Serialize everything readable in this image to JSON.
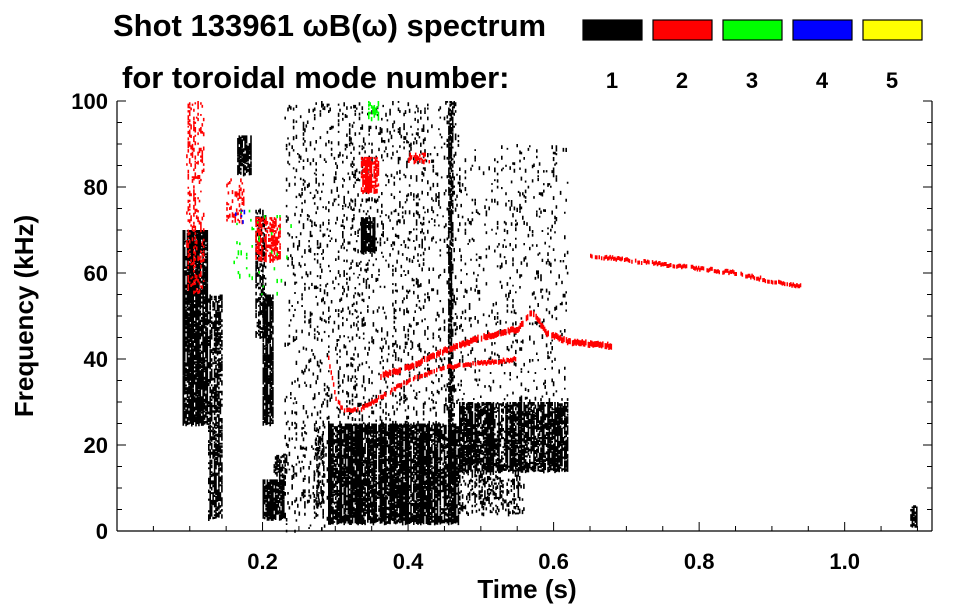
{
  "chart_data": {
    "type": "heatmap",
    "title_line1": "Shot 133961 ωB(ω) spectrum",
    "title_line2": "for toroidal mode number:",
    "xlabel": "Time (s)",
    "ylabel": "Frequency (kHz)",
    "xlim": [
      0.0,
      1.12
    ],
    "ylim": [
      0,
      100
    ],
    "x_ticks": [
      {
        "value": 0.2,
        "label": "0.2"
      },
      {
        "value": 0.4,
        "label": "0.4"
      },
      {
        "value": 0.6,
        "label": "0.6"
      },
      {
        "value": 0.8,
        "label": "0.8"
      },
      {
        "value": 1.0,
        "label": "1.0"
      }
    ],
    "y_ticks": [
      {
        "value": 0,
        "label": "0"
      },
      {
        "value": 20,
        "label": "20"
      },
      {
        "value": 40,
        "label": "40"
      },
      {
        "value": 60,
        "label": "60"
      },
      {
        "value": 80,
        "label": "80"
      },
      {
        "value": 100,
        "label": "100"
      }
    ],
    "legend": {
      "placement": "top-right",
      "entries": [
        {
          "n": "1",
          "color": "#000000"
        },
        {
          "n": "2",
          "color": "#ff0000"
        },
        {
          "n": "3",
          "color": "#00ff00"
        },
        {
          "n": "4",
          "color": "#0000ff"
        },
        {
          "n": "5",
          "color": "#ffff00"
        }
      ]
    },
    "regions": [
      {
        "mode": 1,
        "t0": 0.09,
        "t1": 0.125,
        "f0": 25,
        "f1": 70,
        "d": 0.72
      },
      {
        "mode": 1,
        "t0": 0.125,
        "t1": 0.145,
        "f0": 3,
        "f1": 55,
        "d": 0.35
      },
      {
        "mode": 1,
        "t0": 0.165,
        "t1": 0.185,
        "f0": 83,
        "f1": 92,
        "d": 0.45
      },
      {
        "mode": 1,
        "t0": 0.19,
        "t1": 0.205,
        "f0": 45,
        "f1": 75,
        "d": 0.25
      },
      {
        "mode": 1,
        "t0": 0.2,
        "t1": 0.215,
        "f0": 25,
        "f1": 55,
        "d": 0.55
      },
      {
        "mode": 1,
        "t0": 0.2,
        "t1": 0.23,
        "f0": 3,
        "f1": 12,
        "d": 0.7
      },
      {
        "mode": 1,
        "t0": 0.215,
        "t1": 0.232,
        "f0": 11,
        "f1": 18,
        "d": 0.35
      },
      {
        "mode": 1,
        "t0": 0.23,
        "t1": 0.29,
        "f0": 0,
        "f1": 100,
        "d": 0.04
      },
      {
        "mode": 1,
        "t0": 0.27,
        "t1": 0.285,
        "f0": 5,
        "f1": 25,
        "d": 0.2
      },
      {
        "mode": 1,
        "t0": 0.29,
        "t1": 0.47,
        "f0": 2,
        "f1": 25,
        "d": 0.62
      },
      {
        "mode": 1,
        "t0": 0.29,
        "t1": 0.47,
        "f0": 25,
        "f1": 100,
        "d": 0.05
      },
      {
        "mode": 1,
        "t0": 0.335,
        "t1": 0.355,
        "f0": 65,
        "f1": 73,
        "d": 0.7
      },
      {
        "mode": 1,
        "t0": 0.455,
        "t1": 0.462,
        "f0": 8,
        "f1": 100,
        "d": 0.35
      },
      {
        "mode": 1,
        "t0": 0.47,
        "t1": 0.62,
        "f0": 14,
        "f1": 30,
        "d": 0.55
      },
      {
        "mode": 1,
        "t0": 0.47,
        "t1": 0.56,
        "f0": 4,
        "f1": 14,
        "d": 0.15
      },
      {
        "mode": 1,
        "t0": 0.47,
        "t1": 0.62,
        "f0": 30,
        "f1": 90,
        "d": 0.03
      },
      {
        "mode": 1,
        "t0": 1.09,
        "t1": 1.1,
        "f0": 1,
        "f1": 6,
        "d": 0.6
      },
      {
        "mode": 2,
        "t0": 0.095,
        "t1": 0.12,
        "f0": 55,
        "f1": 100,
        "d": 0.14
      },
      {
        "mode": 2,
        "t0": 0.15,
        "t1": 0.175,
        "f0": 72,
        "f1": 82,
        "d": 0.18
      },
      {
        "mode": 2,
        "t0": 0.19,
        "t1": 0.225,
        "f0": 63,
        "f1": 73,
        "d": 0.35
      },
      {
        "mode": 2,
        "t0": 0.335,
        "t1": 0.36,
        "f0": 79,
        "f1": 87,
        "d": 0.6
      },
      {
        "mode": 2,
        "t0": 0.4,
        "t1": 0.43,
        "f0": 86,
        "f1": 88,
        "d": 0.3
      },
      {
        "mode": 3,
        "t0": 0.345,
        "t1": 0.36,
        "f0": 96,
        "f1": 100,
        "d": 0.3
      },
      {
        "mode": 3,
        "t0": 0.16,
        "t1": 0.24,
        "f0": 55,
        "f1": 75,
        "d": 0.01
      },
      {
        "mode": 4,
        "t0": 0.16,
        "t1": 0.18,
        "f0": 72,
        "f1": 75,
        "d": 0.05
      }
    ],
    "curves": [
      {
        "mode": 2,
        "thickness": 2.2,
        "points": [
          [
            0.29,
            40
          ],
          [
            0.3,
            31
          ],
          [
            0.31,
            28
          ],
          [
            0.33,
            28
          ],
          [
            0.36,
            31
          ],
          [
            0.4,
            35
          ],
          [
            0.45,
            38
          ],
          [
            0.5,
            39
          ],
          [
            0.55,
            40
          ]
        ]
      },
      {
        "mode": 2,
        "thickness": 3.0,
        "points": [
          [
            0.36,
            36
          ],
          [
            0.4,
            38
          ],
          [
            0.45,
            42
          ],
          [
            0.5,
            45
          ],
          [
            0.55,
            47
          ],
          [
            0.57,
            51
          ],
          [
            0.59,
            46
          ],
          [
            0.62,
            44
          ],
          [
            0.68,
            43
          ]
        ]
      },
      {
        "mode": 2,
        "thickness": 2.0,
        "points": [
          [
            0.65,
            64
          ],
          [
            0.7,
            63
          ],
          [
            0.75,
            62
          ],
          [
            0.8,
            61
          ],
          [
            0.85,
            60
          ],
          [
            0.9,
            58
          ],
          [
            0.94,
            57
          ]
        ]
      }
    ]
  }
}
